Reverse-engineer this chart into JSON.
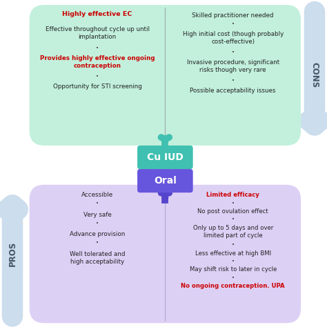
{
  "top_box_color": "#c2f0dc",
  "bottom_box_color": "#ddd0f5",
  "cu_iud_color": "#40c0b0",
  "oral_color": "#6655dd",
  "arrow_side_color": "#ccdded",
  "arrow_cu_color": "#40c0b0",
  "arrow_oral_color": "#5544cc",
  "cons_label": "CONS",
  "pros_label": "PROS",
  "cu_iud_label": "Cu IUD",
  "oral_label": "Oral",
  "top_left_header": "Highly effective EC",
  "top_left_lines": [
    {
      "text": "Effective throughout cycle up until\nimplantation",
      "bold": false,
      "color": "#222222"
    },
    {
      "text": "Provides highly effective ongoing\ncontraception",
      "bold": true,
      "color": "#cc0000"
    },
    {
      "text": "Opportunity for STI screening",
      "bold": false,
      "color": "#222222"
    }
  ],
  "top_right_lines": [
    {
      "text": "Skilled practitioner needed",
      "bold": false,
      "color": "#222222"
    },
    {
      "text": "High initial cost (though probably\ncost-effective)",
      "bold": false,
      "color": "#222222"
    },
    {
      "text": "Invasive procedure, significant\nrisks though very rare",
      "bold": false,
      "color": "#222222"
    },
    {
      "text": "Possible acceptability issues",
      "bold": false,
      "color": "#222222"
    }
  ],
  "bottom_left_lines": [
    {
      "text": "Accessible",
      "bold": false,
      "color": "#222222"
    },
    {
      "text": "Very safe",
      "bold": false,
      "color": "#222222"
    },
    {
      "text": "Advance provision",
      "bold": false,
      "color": "#222222"
    },
    {
      "text": "Well tolerated and\nhigh acceptability",
      "bold": false,
      "color": "#222222"
    }
  ],
  "bottom_right_lines": [
    {
      "text": "Limited efficacy",
      "bold": true,
      "color": "#cc0000"
    },
    {
      "text": "No post ovulation effect",
      "bold": false,
      "color": "#222222"
    },
    {
      "text": "Only up to 5 days and over\nlimited part of cycle",
      "bold": false,
      "color": "#222222"
    },
    {
      "text": "Less effective at high BMI",
      "bold": false,
      "color": "#222222"
    },
    {
      "text": "May shift risk to later in cycle",
      "bold": false,
      "color": "#222222"
    },
    {
      "text": "No ongoing contraception. UPA",
      "bold": true,
      "color": "#cc0000"
    }
  ],
  "figsize": [
    4.74,
    4.74
  ],
  "dpi": 100
}
